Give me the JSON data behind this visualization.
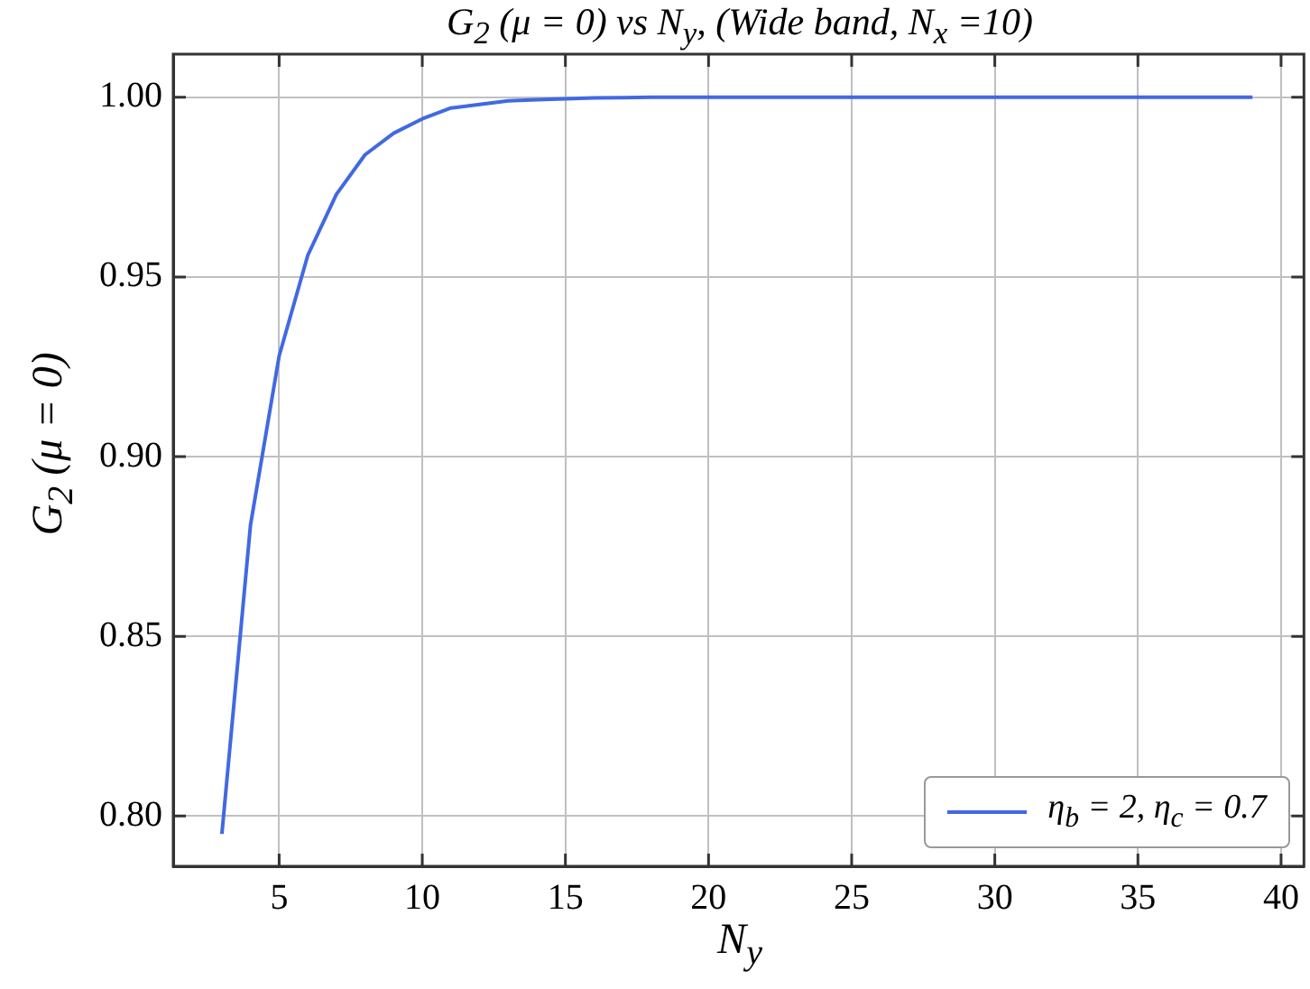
{
  "chart_data": {
    "type": "line",
    "title": "G$_{2}$ (μ = 0) vs N$_{y}$, (Wide band, N$_{x}$ =10)",
    "xlabel": "N$_{y}$",
    "ylabel": "G$_{2}$ (μ = 0)",
    "x": [
      3,
      4,
      5,
      6,
      7,
      8,
      9,
      10,
      11,
      12,
      13,
      14,
      15,
      16,
      17,
      18,
      19,
      20,
      21,
      22,
      23,
      24,
      25,
      26,
      27,
      28,
      29,
      30,
      31,
      32,
      33,
      34,
      35,
      36,
      37,
      38,
      39
    ],
    "series": [
      {
        "name": "η$_{b}$ = 2, η$_{c}$ = 0.7",
        "color": "#4169e1",
        "values": [
          0.795,
          0.881,
          0.928,
          0.956,
          0.973,
          0.984,
          0.99,
          0.994,
          0.997,
          0.998,
          0.999,
          0.9993,
          0.9996,
          0.9998,
          0.9999,
          1.0,
          1.0,
          1.0,
          1.0,
          1.0,
          1.0,
          1.0,
          1.0,
          1.0,
          1.0,
          1.0,
          1.0,
          1.0,
          1.0,
          1.0,
          1.0,
          1.0,
          1.0,
          1.0,
          1.0,
          1.0,
          1.0
        ]
      }
    ],
    "xlim": [
      1.3,
      40.8
    ],
    "xticks": [
      5,
      10,
      15,
      20,
      25,
      30,
      35,
      40
    ],
    "ylim": [
      0.786,
      1.012
    ],
    "yticks": [
      {
        "value": 0.8,
        "label": "0.80"
      },
      {
        "value": 0.85,
        "label": "0.85"
      },
      {
        "value": 0.9,
        "label": "0.90"
      },
      {
        "value": 0.95,
        "label": "0.95"
      },
      {
        "value": 1.0,
        "label": "1.00"
      }
    ],
    "grid": true,
    "legend": "bottom right",
    "marker": "none",
    "line_style": "solid"
  }
}
